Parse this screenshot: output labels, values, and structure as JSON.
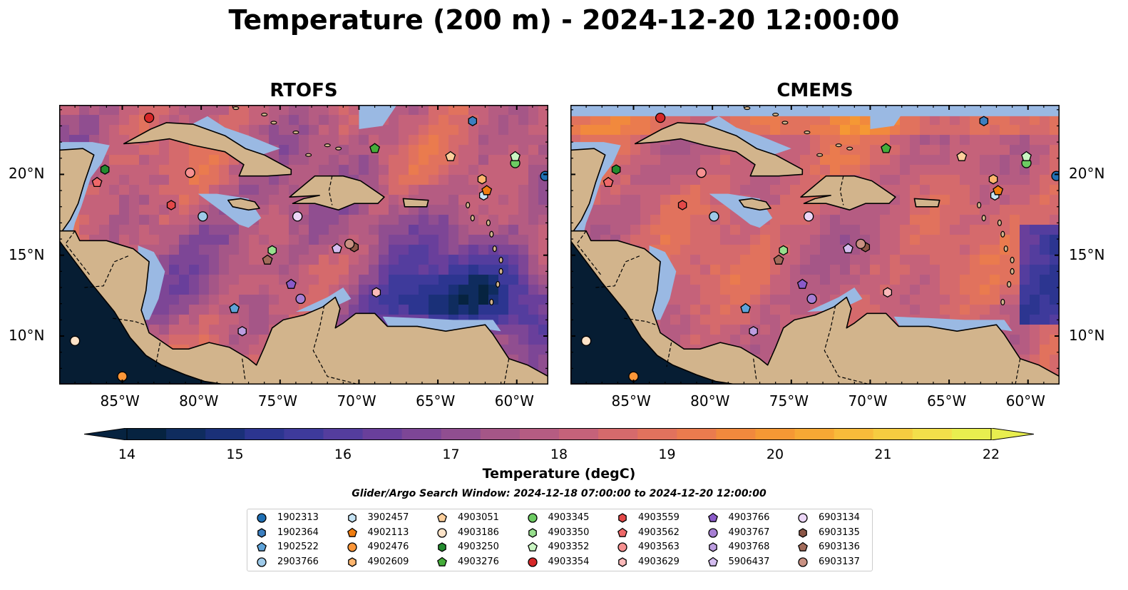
{
  "title": "Temperature (200 m) - 2024-12-20 12:00:00",
  "panels": [
    {
      "title": "RTOFS",
      "id": "rtofs"
    },
    {
      "title": "CMEMS",
      "id": "cmems"
    }
  ],
  "map_extent": {
    "lon": [
      -89,
      -58
    ],
    "lat": [
      7,
      24.3
    ]
  },
  "lon_ticks": [
    "85°W",
    "80°W",
    "75°W",
    "70°W",
    "65°W",
    "60°W"
  ],
  "lon_tick_values": [
    -85,
    -80,
    -75,
    -70,
    -65,
    -60
  ],
  "lat_ticks": [
    "20°N",
    "15°N",
    "10°N"
  ],
  "lat_tick_values": [
    20,
    15,
    10
  ],
  "colors": {
    "land": "#d2b48c",
    "shallow": "#9ab9e3",
    "deep_cold": "#061d33",
    "border": "#000000"
  },
  "colorbar": {
    "label": "Temperature (degC)",
    "ticks": [
      "14",
      "15",
      "16",
      "17",
      "18",
      "19",
      "20",
      "21",
      "22"
    ],
    "tick_values": [
      14,
      15,
      16,
      17,
      18,
      19,
      20,
      21,
      22
    ],
    "min": 14,
    "max": 22,
    "step": 0.5,
    "extend": "both",
    "colors": [
      "#062340",
      "#0f2c5e",
      "#1a3078",
      "#2c3590",
      "#3e3a9b",
      "#543d9e",
      "#693f9b",
      "#7d4696",
      "#904e90",
      "#a55687",
      "#b55c82",
      "#c5627a",
      "#d56a6c",
      "#e1725d",
      "#ea7b4e",
      "#f1893d",
      "#f59834",
      "#f7a834",
      "#f8bb3a",
      "#f6cc40",
      "#f3df4a",
      "#e8ee4f"
    ]
  },
  "search_window": "Glider/Argo Search Window: 2024-12-18 07:00:00 to 2024-12-20 12:00:00",
  "legend": [
    {
      "id": "1902313",
      "marker": "circle",
      "color": "#1f6fb4"
    },
    {
      "id": "1902364",
      "marker": "hexagon",
      "color": "#3c7fc0"
    },
    {
      "id": "1902522",
      "marker": "pentagon",
      "color": "#5ea3d9"
    },
    {
      "id": "2903766",
      "marker": "circle",
      "color": "#9ecae9"
    },
    {
      "id": "3902457",
      "marker": "hexagon",
      "color": "#c6e4f5"
    },
    {
      "id": "4902113",
      "marker": "pentagon",
      "color": "#f07d10"
    },
    {
      "id": "4902476",
      "marker": "circle",
      "color": "#fd9638"
    },
    {
      "id": "4902609",
      "marker": "hexagon",
      "color": "#fdb56e"
    },
    {
      "id": "4903051",
      "marker": "pentagon",
      "color": "#fdcf9c"
    },
    {
      "id": "4903186",
      "marker": "circle",
      "color": "#fde3c8"
    },
    {
      "id": "4903250",
      "marker": "hexagon",
      "color": "#238b2f"
    },
    {
      "id": "4903276",
      "marker": "pentagon",
      "color": "#45ad3a"
    },
    {
      "id": "4903345",
      "marker": "circle",
      "color": "#6ccb62"
    },
    {
      "id": "4903350",
      "marker": "hexagon",
      "color": "#97df8d"
    },
    {
      "id": "4903352",
      "marker": "pentagon",
      "color": "#c9f5c2"
    },
    {
      "id": "4903354",
      "marker": "circle",
      "color": "#d62728"
    },
    {
      "id": "4903559",
      "marker": "hexagon",
      "color": "#e34848"
    },
    {
      "id": "4903562",
      "marker": "pentagon",
      "color": "#ee6868"
    },
    {
      "id": "4903563",
      "marker": "circle",
      "color": "#f69191"
    },
    {
      "id": "4903629",
      "marker": "hexagon",
      "color": "#fbb9b9"
    },
    {
      "id": "4903766",
      "marker": "pentagon",
      "color": "#8a5ac8"
    },
    {
      "id": "4903767",
      "marker": "circle",
      "color": "#a67ed3"
    },
    {
      "id": "4903768",
      "marker": "hexagon",
      "color": "#bc9de0"
    },
    {
      "id": "5906437",
      "marker": "pentagon",
      "color": "#d4bdf0"
    },
    {
      "id": "6903134",
      "marker": "circle",
      "color": "#ecd6f7"
    },
    {
      "id": "6903135",
      "marker": "hexagon",
      "color": "#8c5646"
    },
    {
      "id": "6903136",
      "marker": "pentagon",
      "color": "#a26b5a"
    },
    {
      "id": "6903137",
      "marker": "circle",
      "color": "#c99182"
    }
  ],
  "observations": [
    {
      "id": "1902313",
      "lon": -58.2,
      "lat": 19.9
    },
    {
      "id": "1902364",
      "lon": -62.8,
      "lat": 23.3
    },
    {
      "id": "1902522",
      "lon": -77.9,
      "lat": 11.7
    },
    {
      "id": "2903766",
      "lon": -79.9,
      "lat": 17.4
    },
    {
      "id": "3902457",
      "lon": -62.1,
      "lat": 18.7
    },
    {
      "id": "4902113",
      "lon": -61.9,
      "lat": 19.0
    },
    {
      "id": "4902476",
      "lon": -85.0,
      "lat": 7.5
    },
    {
      "id": "4902609",
      "lon": -62.2,
      "lat": 19.7
    },
    {
      "id": "4903051",
      "lon": -64.2,
      "lat": 21.1
    },
    {
      "id": "4903186",
      "lon": -88.0,
      "lat": 9.7
    },
    {
      "id": "4903250",
      "lon": -86.1,
      "lat": 20.3
    },
    {
      "id": "4903276",
      "lon": -69.0,
      "lat": 21.6
    },
    {
      "id": "4903345",
      "lon": -60.1,
      "lat": 20.7
    },
    {
      "id": "4903350",
      "lon": -75.5,
      "lat": 15.3
    },
    {
      "id": "4903352",
      "lon": -60.1,
      "lat": 21.1
    },
    {
      "id": "4903354",
      "lon": -83.3,
      "lat": 23.5
    },
    {
      "id": "4903559",
      "lon": -81.9,
      "lat": 18.1
    },
    {
      "id": "4903562",
      "lon": -86.6,
      "lat": 19.5
    },
    {
      "id": "4903563",
      "lon": -80.7,
      "lat": 20.1
    },
    {
      "id": "4903629",
      "lon": -68.9,
      "lat": 12.7
    },
    {
      "id": "4903766",
      "lon": -74.3,
      "lat": 13.2
    },
    {
      "id": "4903767",
      "lon": -73.7,
      "lat": 12.3
    },
    {
      "id": "4903768",
      "lon": -77.4,
      "lat": 10.3
    },
    {
      "id": "5906437",
      "lon": -71.4,
      "lat": 15.4
    },
    {
      "id": "6903134",
      "lon": -73.9,
      "lat": 17.4
    },
    {
      "id": "6903135",
      "lon": -70.3,
      "lat": 15.5
    },
    {
      "id": "6903136",
      "lon": -75.8,
      "lat": 14.7
    },
    {
      "id": "6903137",
      "lon": -70.6,
      "lat": 15.7
    }
  ]
}
